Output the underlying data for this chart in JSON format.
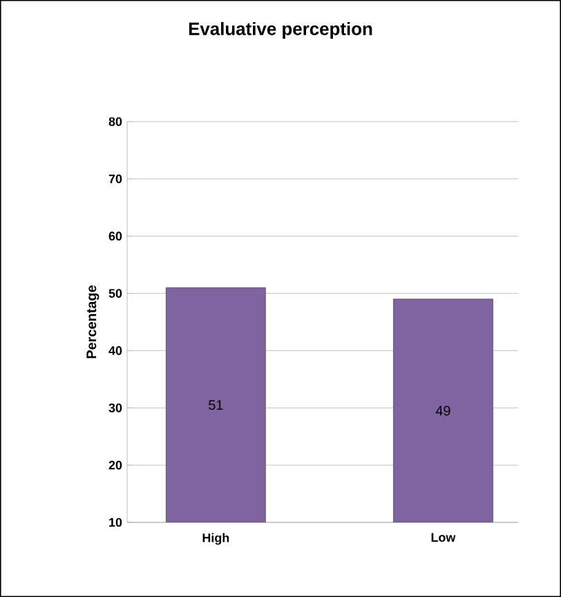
{
  "chart_data": {
    "type": "bar",
    "title": "Evaluative perception",
    "ylabel": "Percentage",
    "categories": [
      "High",
      "Low"
    ],
    "values": [
      51,
      49
    ],
    "color": "#8064a2",
    "ylim": [
      10,
      80
    ],
    "yticks": [
      10,
      20,
      30,
      40,
      50,
      60,
      70,
      80
    ],
    "grid": "y",
    "data_labels": true
  }
}
